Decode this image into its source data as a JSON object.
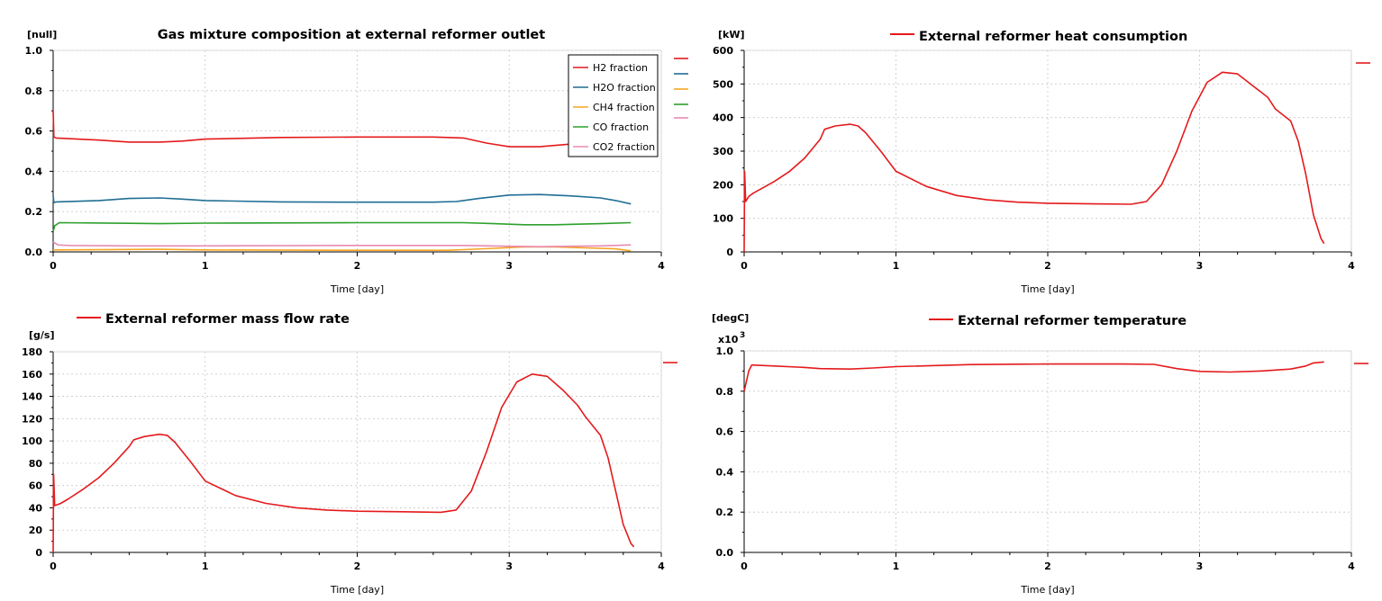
{
  "colors": {
    "red": "#e41a1c",
    "blue": "#1f6e94",
    "orange": "#f5a623",
    "green": "#2ca02c",
    "pink": "#e88bb4"
  },
  "chart_data": [
    {
      "id": "composition",
      "type": "line",
      "title": "Gas mixture composition at external reformer outlet",
      "unit": "[null]",
      "xlabel": "Time [day]",
      "xlim": [
        0,
        4
      ],
      "ylim": [
        0,
        1.0
      ],
      "xticks": [
        "0",
        "1",
        "2",
        "3",
        "4"
      ],
      "yticks": [
        "0.0",
        "0.2",
        "0.4",
        "0.6",
        "0.8",
        "1.0"
      ],
      "legend": "top-right",
      "series": [
        {
          "name": "H2 fraction",
          "color": "#e41a1c",
          "points": [
            [
              0,
              0.7
            ],
            [
              0.005,
              0.57
            ],
            [
              0.02,
              0.565
            ],
            [
              0.3,
              0.555
            ],
            [
              0.5,
              0.545
            ],
            [
              0.7,
              0.545
            ],
            [
              0.85,
              0.55
            ],
            [
              1.0,
              0.56
            ],
            [
              1.5,
              0.568
            ],
            [
              2.0,
              0.57
            ],
            [
              2.5,
              0.57
            ],
            [
              2.7,
              0.565
            ],
            [
              2.85,
              0.54
            ],
            [
              3.0,
              0.522
            ],
            [
              3.2,
              0.522
            ],
            [
              3.4,
              0.535
            ],
            [
              3.55,
              0.548
            ]
          ]
        },
        {
          "name": "H2O fraction",
          "color": "#1f6e94",
          "points": [
            [
              0,
              0.28
            ],
            [
              0.005,
              0.245
            ],
            [
              0.02,
              0.248
            ],
            [
              0.3,
              0.255
            ],
            [
              0.5,
              0.265
            ],
            [
              0.7,
              0.268
            ],
            [
              0.85,
              0.262
            ],
            [
              1.0,
              0.255
            ],
            [
              1.5,
              0.248
            ],
            [
              2.0,
              0.247
            ],
            [
              2.5,
              0.247
            ],
            [
              2.65,
              0.25
            ],
            [
              2.8,
              0.265
            ],
            [
              3.0,
              0.282
            ],
            [
              3.2,
              0.285
            ],
            [
              3.4,
              0.278
            ],
            [
              3.6,
              0.268
            ],
            [
              3.7,
              0.255
            ],
            [
              3.8,
              0.238
            ]
          ]
        },
        {
          "name": "CH4 fraction",
          "color": "#f5a623",
          "points": [
            [
              0,
              0.01
            ],
            [
              0.5,
              0.012
            ],
            [
              0.7,
              0.013
            ],
            [
              1.0,
              0.01
            ],
            [
              2.0,
              0.008
            ],
            [
              2.6,
              0.008
            ],
            [
              2.9,
              0.018
            ],
            [
              3.1,
              0.025
            ],
            [
              3.3,
              0.025
            ],
            [
              3.5,
              0.02
            ],
            [
              3.7,
              0.015
            ],
            [
              3.8,
              0.005
            ]
          ]
        },
        {
          "name": "CO fraction",
          "color": "#2ca02c",
          "points": [
            [
              0,
              0.1
            ],
            [
              0.01,
              0.13
            ],
            [
              0.04,
              0.145
            ],
            [
              0.5,
              0.142
            ],
            [
              0.7,
              0.14
            ],
            [
              1.0,
              0.143
            ],
            [
              2.0,
              0.145
            ],
            [
              2.7,
              0.145
            ],
            [
              2.9,
              0.14
            ],
            [
              3.1,
              0.135
            ],
            [
              3.3,
              0.135
            ],
            [
              3.6,
              0.14
            ],
            [
              3.8,
              0.145
            ]
          ]
        },
        {
          "name": "CO2 fraction",
          "color": "#e88bb4",
          "points": [
            [
              0,
              0.05
            ],
            [
              0.03,
              0.035
            ],
            [
              0.1,
              0.032
            ],
            [
              0.5,
              0.03
            ],
            [
              1.0,
              0.03
            ],
            [
              2.0,
              0.032
            ],
            [
              2.7,
              0.032
            ],
            [
              3.0,
              0.028
            ],
            [
              3.2,
              0.026
            ],
            [
              3.4,
              0.028
            ],
            [
              3.6,
              0.03
            ],
            [
              3.8,
              0.035
            ]
          ]
        }
      ]
    },
    {
      "id": "heat",
      "type": "line",
      "title": "External reformer heat consumption",
      "unit": "[kW]",
      "xlabel": "Time [day]",
      "xlim": [
        0,
        4
      ],
      "ylim": [
        0,
        600
      ],
      "xticks": [
        "0",
        "1",
        "2",
        "3",
        "4"
      ],
      "yticks": [
        "0",
        "100",
        "200",
        "300",
        "400",
        "500",
        "600"
      ],
      "series": [
        {
          "name": "External reformer heat consumption",
          "color": "#e41a1c",
          "points": [
            [
              0,
              0
            ],
            [
              0.003,
              240
            ],
            [
              0.01,
              150
            ],
            [
              0.03,
              165
            ],
            [
              0.06,
              175
            ],
            [
              0.1,
              185
            ],
            [
              0.2,
              210
            ],
            [
              0.3,
              240
            ],
            [
              0.4,
              280
            ],
            [
              0.5,
              335
            ],
            [
              0.53,
              365
            ],
            [
              0.6,
              375
            ],
            [
              0.7,
              380
            ],
            [
              0.75,
              375
            ],
            [
              0.8,
              355
            ],
            [
              0.9,
              300
            ],
            [
              1.0,
              240
            ],
            [
              1.2,
              195
            ],
            [
              1.4,
              168
            ],
            [
              1.6,
              155
            ],
            [
              1.8,
              148
            ],
            [
              2.0,
              145
            ],
            [
              2.3,
              143
            ],
            [
              2.55,
              142
            ],
            [
              2.65,
              150
            ],
            [
              2.75,
              200
            ],
            [
              2.85,
              300
            ],
            [
              2.95,
              420
            ],
            [
              3.05,
              505
            ],
            [
              3.15,
              535
            ],
            [
              3.25,
              530
            ],
            [
              3.35,
              495
            ],
            [
              3.45,
              460
            ],
            [
              3.5,
              425
            ],
            [
              3.6,
              390
            ],
            [
              3.65,
              330
            ],
            [
              3.7,
              230
            ],
            [
              3.75,
              110
            ],
            [
              3.8,
              40
            ],
            [
              3.82,
              25
            ]
          ]
        }
      ]
    },
    {
      "id": "massflow",
      "type": "line",
      "title": "External reformer mass flow rate",
      "unit": "[g/s]",
      "xlabel": "Time [day]",
      "xlim": [
        0,
        4
      ],
      "ylim": [
        0,
        180
      ],
      "xticks": [
        "0",
        "1",
        "2",
        "3",
        "4"
      ],
      "yticks": [
        "0",
        "20",
        "40",
        "60",
        "80",
        "100",
        "120",
        "140",
        "160",
        "180"
      ],
      "series": [
        {
          "name": "External reformer mass flow rate",
          "color": "#e41a1c",
          "points": [
            [
              0,
              0
            ],
            [
              0.003,
              70
            ],
            [
              0.01,
              42
            ],
            [
              0.05,
              44
            ],
            [
              0.1,
              48
            ],
            [
              0.2,
              57
            ],
            [
              0.3,
              67
            ],
            [
              0.4,
              80
            ],
            [
              0.5,
              95
            ],
            [
              0.53,
              101
            ],
            [
              0.6,
              104
            ],
            [
              0.7,
              106
            ],
            [
              0.75,
              105
            ],
            [
              0.8,
              99
            ],
            [
              0.9,
              82
            ],
            [
              1.0,
              64
            ],
            [
              1.2,
              51
            ],
            [
              1.4,
              44
            ],
            [
              1.6,
              40
            ],
            [
              1.8,
              38
            ],
            [
              2.0,
              37
            ],
            [
              2.3,
              36.5
            ],
            [
              2.55,
              36
            ],
            [
              2.65,
              38
            ],
            [
              2.75,
              55
            ],
            [
              2.85,
              90
            ],
            [
              2.95,
              130
            ],
            [
              3.05,
              153
            ],
            [
              3.15,
              160
            ],
            [
              3.25,
              158
            ],
            [
              3.35,
              146
            ],
            [
              3.45,
              132
            ],
            [
              3.5,
              122
            ],
            [
              3.6,
              105
            ],
            [
              3.65,
              85
            ],
            [
              3.7,
              55
            ],
            [
              3.75,
              25
            ],
            [
              3.8,
              8
            ],
            [
              3.82,
              5
            ]
          ]
        }
      ]
    },
    {
      "id": "temperature",
      "type": "line",
      "title": "External reformer temperature",
      "unit": "[degC]",
      "multiplier": "x10",
      "multiplier_exp": "3",
      "xlabel": "Time [day]",
      "xlim": [
        0,
        4
      ],
      "ylim": [
        0,
        1.0
      ],
      "xticks": [
        "0",
        "1",
        "2",
        "3",
        "4"
      ],
      "yticks": [
        "0.0",
        "0.2",
        "0.4",
        "0.6",
        "0.8",
        "1.0"
      ],
      "series": [
        {
          "name": "External reformer temperature",
          "color": "#e41a1c",
          "points": [
            [
              0,
              0.8
            ],
            [
              0.03,
              0.9
            ],
            [
              0.05,
              0.93
            ],
            [
              0.2,
              0.925
            ],
            [
              0.4,
              0.918
            ],
            [
              0.5,
              0.912
            ],
            [
              0.7,
              0.91
            ],
            [
              0.85,
              0.915
            ],
            [
              1.0,
              0.922
            ],
            [
              1.5,
              0.932
            ],
            [
              2.0,
              0.935
            ],
            [
              2.5,
              0.935
            ],
            [
              2.7,
              0.933
            ],
            [
              2.85,
              0.912
            ],
            [
              3.0,
              0.898
            ],
            [
              3.2,
              0.895
            ],
            [
              3.4,
              0.9
            ],
            [
              3.5,
              0.905
            ],
            [
              3.6,
              0.91
            ],
            [
              3.7,
              0.925
            ],
            [
              3.75,
              0.94
            ],
            [
              3.82,
              0.945
            ]
          ]
        }
      ]
    }
  ]
}
